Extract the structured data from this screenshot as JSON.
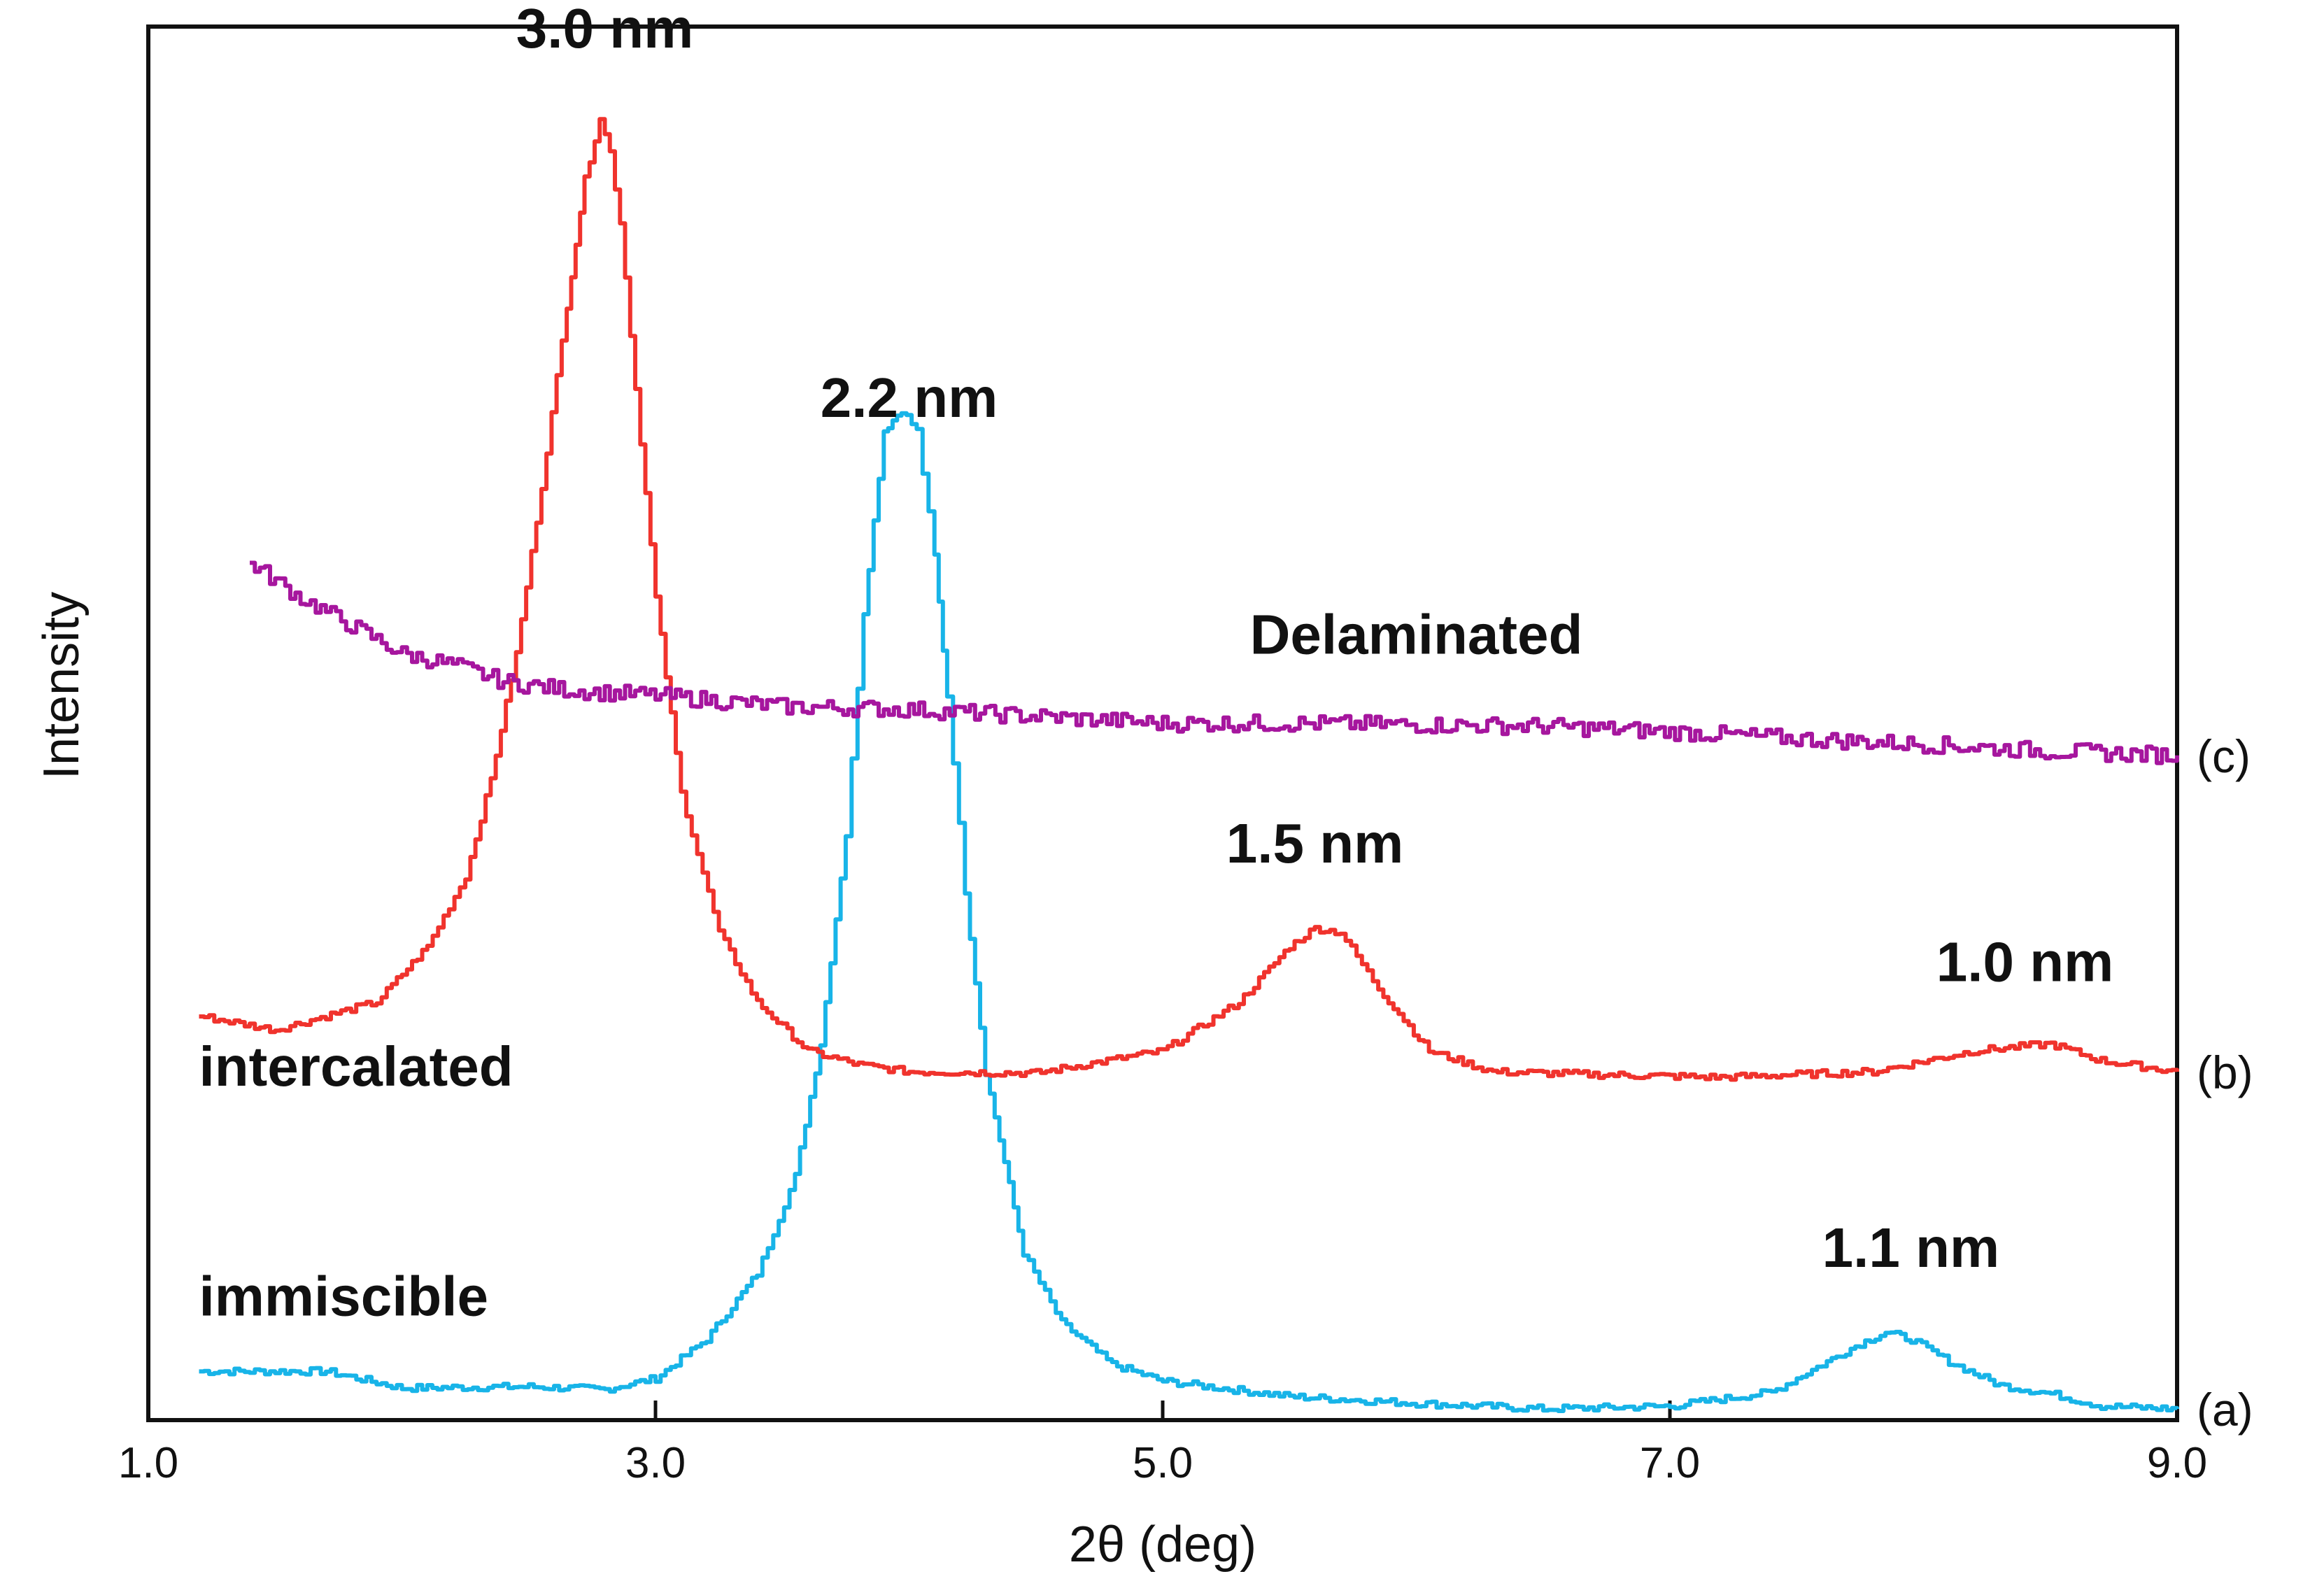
{
  "chart_data": {
    "type": "line",
    "title": "",
    "xlabel": "2θ (deg)",
    "ylabel": "Intensity",
    "xlim": [
      1.0,
      9.0
    ],
    "ylim": [
      0,
      100
    ],
    "xticks": [
      "1.0",
      "3.0",
      "5.0",
      "7.0",
      "9.0"
    ],
    "grid": false,
    "legend": "none",
    "series": [
      {
        "name": "immiscible",
        "tag": "(a)",
        "color": "#18b4e8",
        "x": [
          1.2,
          1.7,
          2.0,
          2.5,
          2.8,
          3.0,
          3.2,
          3.4,
          3.55,
          3.65,
          3.75,
          3.82,
          3.9,
          3.97,
          4.03,
          4.1,
          4.15,
          4.22,
          4.3,
          4.45,
          4.6,
          4.8,
          5.0,
          5.5,
          6.0,
          6.5,
          7.0,
          7.4,
          7.6,
          7.75,
          7.85,
          7.95,
          8.1,
          8.3,
          8.5,
          8.7,
          9.0
        ],
        "y": [
          3.5,
          3.5,
          2.3,
          2.4,
          2.2,
          3.0,
          5.8,
          10.5,
          17.5,
          27.0,
          42.0,
          58.0,
          71.0,
          72.5,
          71.0,
          62.0,
          52.0,
          38.0,
          25.0,
          12.0,
          7.0,
          4.0,
          2.8,
          1.7,
          1.2,
          0.8,
          1.0,
          2.0,
          4.0,
          5.5,
          6.3,
          5.8,
          4.2,
          2.5,
          1.9,
          1.0,
          0.8
        ]
      },
      {
        "name": "intercalated",
        "tag": "(b)",
        "color": "#f0332d",
        "x": [
          1.2,
          1.5,
          1.9,
          2.1,
          2.25,
          2.35,
          2.45,
          2.55,
          2.65,
          2.72,
          2.78,
          2.82,
          2.86,
          2.92,
          3.0,
          3.1,
          3.25,
          3.4,
          3.6,
          3.8,
          4.0,
          4.5,
          5.0,
          5.3,
          5.5,
          5.6,
          5.7,
          5.85,
          6.05,
          6.3,
          6.7,
          7.2,
          7.8,
          8.2,
          8.5,
          8.7,
          9.0
        ],
        "y": [
          29.0,
          28.0,
          30.0,
          34.0,
          39.0,
          46.0,
          55.0,
          67.0,
          80.0,
          89.0,
          93.5,
          91.0,
          86.0,
          74.0,
          59.0,
          45.0,
          35.0,
          30.0,
          26.5,
          25.5,
          25.0,
          24.9,
          26.5,
          30.0,
          34.0,
          35.3,
          35.0,
          31.0,
          26.5,
          25.0,
          24.8,
          24.6,
          25.0,
          26.5,
          27.0,
          25.8,
          25.0
        ]
      },
      {
        "name": "Delaminated",
        "tag": "(c)",
        "color": "#a6169e",
        "x": [
          1.4,
          1.6,
          1.8,
          2.0,
          2.2,
          2.4,
          2.6,
          2.8,
          3.0,
          3.2,
          3.5,
          4.0,
          4.5,
          5.0,
          5.5,
          6.0,
          6.5,
          7.0,
          7.5,
          8.0,
          8.5,
          9.0
        ],
        "y": [
          61.5,
          59.0,
          57.0,
          55.0,
          54.2,
          53.0,
          52.5,
          52.2,
          52.0,
          51.7,
          51.2,
          51.0,
          50.5,
          50.0,
          50.0,
          49.9,
          49.8,
          49.4,
          48.9,
          48.5,
          48.0,
          47.7
        ]
      }
    ],
    "annotations": [
      {
        "text": "3.0 nm",
        "x": 2.8,
        "y": 98.5,
        "anchor": "middle"
      },
      {
        "text": "2.2 nm",
        "x": 4.0,
        "y": 72.0,
        "anchor": "middle"
      },
      {
        "text": "1.5 nm",
        "x": 5.6,
        "y": 40.0,
        "anchor": "middle"
      },
      {
        "text": "1.0 nm",
        "x": 8.4,
        "y": 31.5,
        "anchor": "middle"
      },
      {
        "text": "1.1 nm",
        "x": 7.95,
        "y": 11.0,
        "anchor": "middle"
      },
      {
        "text": "Delaminated",
        "x": 6.0,
        "y": 55.0,
        "anchor": "middle"
      },
      {
        "text": "intercalated",
        "x": 1.2,
        "y": 24.0,
        "anchor": "start"
      },
      {
        "text": "immiscible",
        "x": 1.2,
        "y": 7.5,
        "anchor": "start"
      }
    ]
  }
}
